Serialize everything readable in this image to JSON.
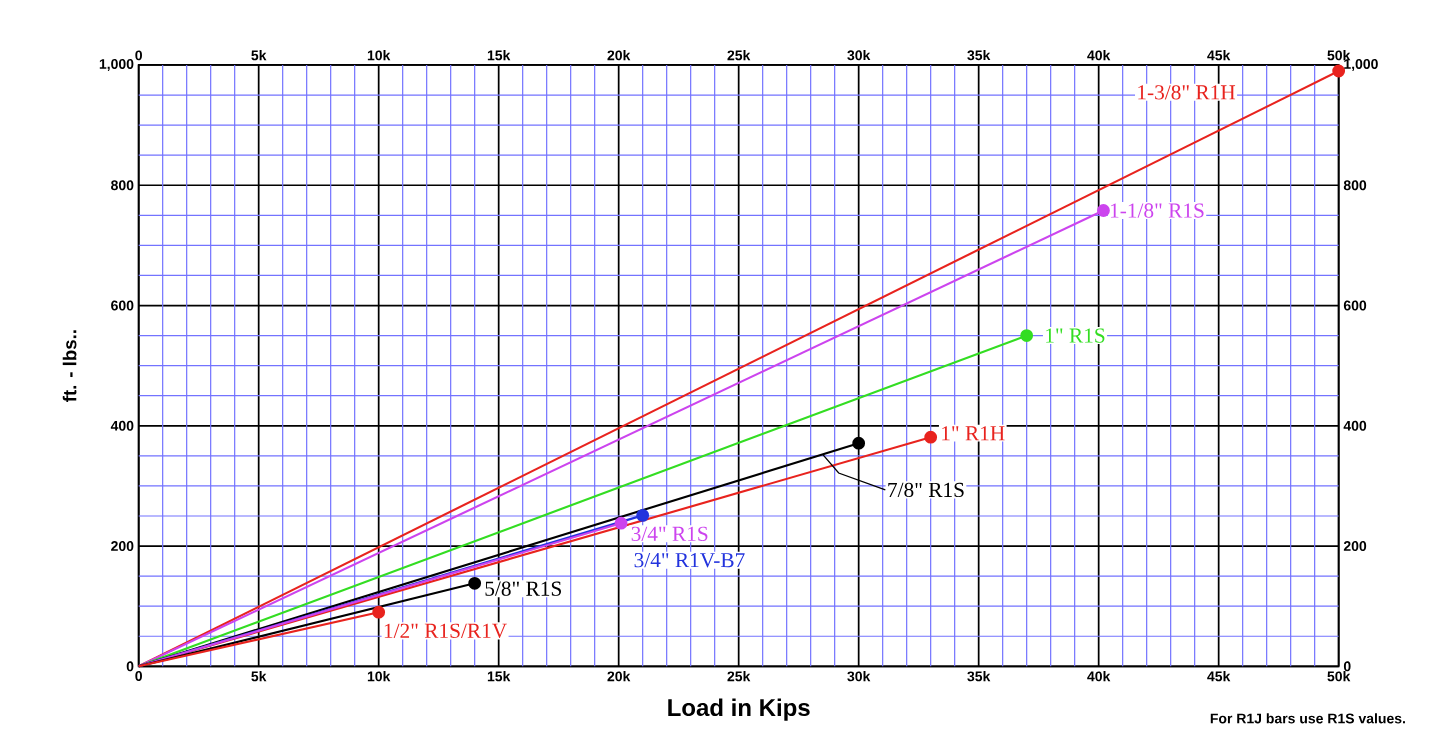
{
  "chart_data": {
    "type": "line",
    "xlabel": "Load in Kips",
    "ylabel": "ft. - lbs..",
    "annotations": [
      "For R1J bars use R1S values."
    ],
    "xlim": [
      0,
      50000
    ],
    "ylim": [
      0,
      1000
    ],
    "xticks": [
      0,
      {
        "value": 1000,
        "label": null
      },
      {
        "value": 2000,
        "label": null
      },
      {
        "value": 3000,
        "label": null
      },
      {
        "value": 4000,
        "label": null
      },
      {
        "value": 5000,
        "label": "5k"
      },
      {
        "value": 6000,
        "label": null
      },
      {
        "value": 7000,
        "label": null
      },
      {
        "value": 8000,
        "label": null
      },
      {
        "value": 9000,
        "label": null
      },
      {
        "value": 10000,
        "label": "10k"
      },
      {
        "value": 11000,
        "label": null
      },
      {
        "value": 12000,
        "label": null
      },
      {
        "value": 13000,
        "label": null
      },
      {
        "value": 14000,
        "label": null
      },
      {
        "value": 15000,
        "label": "15k"
      },
      {
        "value": 16000,
        "label": null
      },
      {
        "value": 17000,
        "label": null
      },
      {
        "value": 18000,
        "label": null
      },
      {
        "value": 19000,
        "label": null
      },
      {
        "value": 20000,
        "label": "20k"
      },
      {
        "value": 21000,
        "label": null
      },
      {
        "value": 22000,
        "label": null
      },
      {
        "value": 23000,
        "label": null
      },
      {
        "value": 24000,
        "label": null
      },
      {
        "value": 25000,
        "label": "25k"
      },
      {
        "value": 26000,
        "label": null
      },
      {
        "value": 27000,
        "label": null
      },
      {
        "value": 28000,
        "label": null
      },
      {
        "value": 29000,
        "label": null
      },
      {
        "value": 30000,
        "label": "30k"
      },
      {
        "value": 31000,
        "label": null
      },
      {
        "value": 32000,
        "label": null
      },
      {
        "value": 33000,
        "label": null
      },
      {
        "value": 34000,
        "label": null
      },
      {
        "value": 35000,
        "label": "35k"
      },
      {
        "value": 36000,
        "label": null
      },
      {
        "value": 37000,
        "label": null
      },
      {
        "value": 38000,
        "label": null
      },
      {
        "value": 39000,
        "label": null
      },
      {
        "value": 40000,
        "label": "40k"
      },
      {
        "value": 41000,
        "label": null
      },
      {
        "value": 42000,
        "label": null
      },
      {
        "value": 43000,
        "label": null
      },
      {
        "value": 44000,
        "label": null
      },
      {
        "value": 45000,
        "label": "45k"
      },
      {
        "value": 46000,
        "label": null
      },
      {
        "value": 47000,
        "label": null
      },
      {
        "value": 48000,
        "label": null
      },
      {
        "value": 49000,
        "label": null
      },
      {
        "value": 50000,
        "label": "50k"
      }
    ],
    "yticks": [
      0,
      {
        "value": 50,
        "label": null
      },
      {
        "value": 100,
        "label": null
      },
      {
        "value": 150,
        "label": null
      },
      200,
      {
        "value": 250,
        "label": null
      },
      {
        "value": 300,
        "label": null
      },
      {
        "value": 350,
        "label": null
      },
      400,
      {
        "value": 450,
        "label": null
      },
      {
        "value": 500,
        "label": null
      },
      {
        "value": 550,
        "label": null
      },
      600,
      {
        "value": 650,
        "label": null
      },
      {
        "value": 700,
        "label": null
      },
      {
        "value": 750,
        "label": null
      },
      800,
      {
        "value": 850,
        "label": null
      },
      {
        "value": 900,
        "label": null
      },
      {
        "value": 950,
        "label": null
      },
      {
        "value": 1000,
        "label": "1,000"
      }
    ],
    "x2lim": [
      0,
      50000
    ],
    "x2ticks": [
      0,
      {
        "value": 5000,
        "label": "5k"
      },
      {
        "value": 10000,
        "label": "10k"
      },
      {
        "value": 15000,
        "label": "15k"
      },
      {
        "value": 20000,
        "label": "20k"
      },
      {
        "value": 25000,
        "label": "25k"
      },
      {
        "value": 30000,
        "label": "30k"
      },
      {
        "value": 35000,
        "label": "35k"
      },
      {
        "value": 40000,
        "label": "40k"
      },
      {
        "value": 45000,
        "label": "45k"
      },
      {
        "value": 50000,
        "label": "50k"
      }
    ],
    "y2lim": [
      0,
      1000
    ],
    "y2ticks": [
      0,
      200,
      400,
      600,
      800,
      {
        "value": 1000,
        "label": "1,000"
      }
    ],
    "grid": true,
    "marker": "circle",
    "line_style": "solid",
    "series": [
      {
        "name": "1-3/8\" R1H",
        "color": "#e8231e",
        "x": [
          0,
          50000
        ],
        "values": [
          0,
          990
        ]
      },
      {
        "name": "1-1/8\" R1S",
        "color": "#cc44ee",
        "x": [
          0,
          40200
        ],
        "values": [
          0,
          758
        ]
      },
      {
        "name": "1\" R1S",
        "color": "#33dd22",
        "x": [
          0,
          37000
        ],
        "values": [
          0,
          550
        ]
      },
      {
        "name": "1\" R1H",
        "color": "#e8231e",
        "x": [
          0,
          33000
        ],
        "values": [
          0,
          381
        ]
      },
      {
        "name": "7/8\" R1S",
        "color": "#000000",
        "x": [
          0,
          30000
        ],
        "values": [
          0,
          371
        ]
      },
      {
        "name": "3/4\" R1V-B7",
        "color": "#2233dd",
        "x": [
          0,
          21000
        ],
        "values": [
          0,
          251
        ]
      },
      {
        "name": "3/4\" R1S",
        "color": "#cc44ee",
        "x": [
          0,
          20100
        ],
        "values": [
          0,
          238
        ]
      },
      {
        "name": "5/8\" R1S",
        "color": "#000000",
        "x": [
          0,
          14000
        ],
        "values": [
          0,
          138
        ]
      },
      {
        "name": "1/2\" R1S/R1V",
        "color": "#e8231e",
        "x": [
          0,
          10000
        ],
        "values": [
          0,
          90
        ]
      }
    ]
  }
}
